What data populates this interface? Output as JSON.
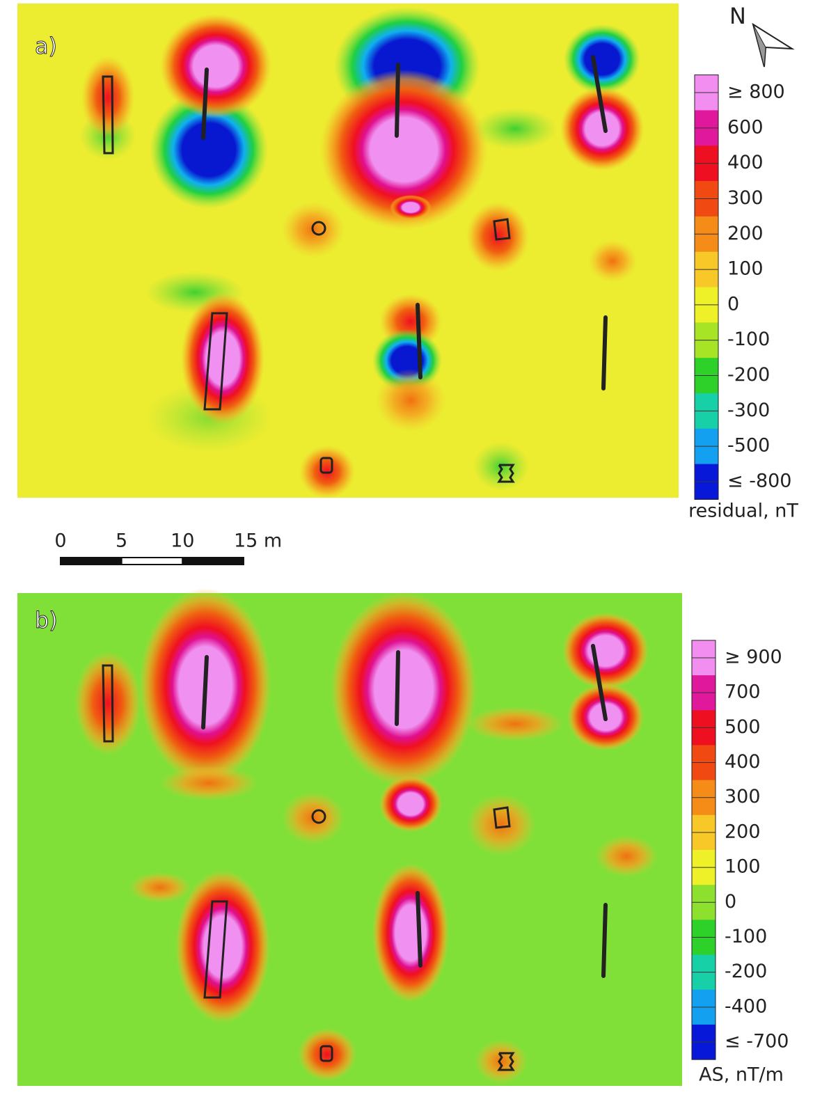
{
  "panels": [
    {
      "label": "a)",
      "colorbar": {
        "title": "residual, nT",
        "ticks": [
          {
            "value": 800,
            "label": "≥ 800"
          },
          600,
          400,
          300,
          200,
          100,
          0,
          -100,
          -200,
          -300,
          -500,
          {
            "value": -800,
            "label": "≤ -800"
          }
        ],
        "colors": [
          "#f28ef0",
          "#e0189c",
          "#ee1020",
          "#f04a12",
          "#f58c18",
          "#f8c828",
          "#eef028",
          "#a8e426",
          "#2ed02a",
          "#18d0a8",
          "#14a0f0",
          "#0818d8"
        ]
      }
    },
    {
      "label": "b)",
      "colorbar": {
        "title": "AS, nT/m",
        "ticks": [
          {
            "value": 900,
            "label": "≥ 900"
          },
          700,
          500,
          400,
          300,
          200,
          100,
          0,
          -100,
          -200,
          -400,
          {
            "value": -700,
            "label": "≤ -700"
          }
        ],
        "colors": [
          "#f28ef0",
          "#e0189c",
          "#ee1020",
          "#f04a12",
          "#f58c18",
          "#f8c828",
          "#eef028",
          "#8ee02e",
          "#2ed02a",
          "#18d0a8",
          "#14a0f0",
          "#0818d8"
        ]
      }
    }
  ],
  "scale_bar": {
    "ticks": [
      0,
      5,
      10,
      {
        "value": 15,
        "label": "15 m"
      }
    ]
  },
  "north_arrow": {
    "label": "N"
  }
}
